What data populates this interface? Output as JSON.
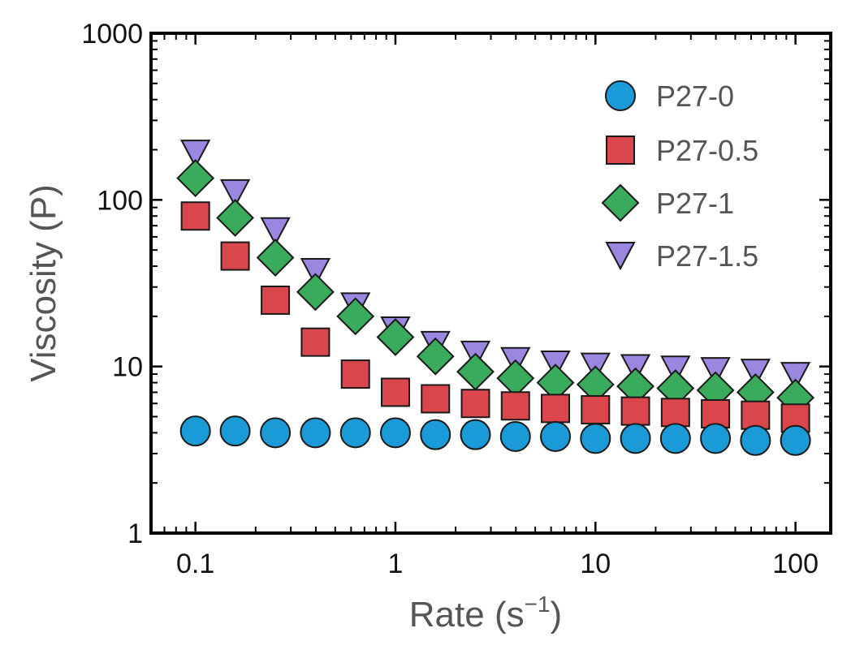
{
  "chart_data": {
    "type": "scatter",
    "xscale": "log",
    "yscale": "log",
    "xlim": [
      0.06,
      150
    ],
    "ylim": [
      1,
      1000
    ],
    "xticks": [
      0.1,
      1,
      10,
      100
    ],
    "xtick_labels": [
      "0.1",
      "1",
      "10",
      "100"
    ],
    "yticks": [
      1,
      10,
      100,
      1000
    ],
    "ytick_labels": [
      "1",
      "10",
      "100",
      "1000"
    ],
    "xlabel": "Rate (s",
    "xlabel_exponent": "−1",
    "xlabel_close": ")",
    "ylabel": "Viscosity (P)",
    "legend_position": "top-right",
    "x": [
      0.1,
      0.158,
      0.251,
      0.398,
      0.631,
      1,
      1.585,
      2.512,
      3.981,
      6.31,
      10,
      15.85,
      25.12,
      39.81,
      63.1,
      100
    ],
    "series": [
      {
        "name": "P27-0",
        "marker": "circle",
        "color": "#1a9ad6",
        "values": [
          4.1,
          4.1,
          4.0,
          4.0,
          4.0,
          4.0,
          3.9,
          3.9,
          3.8,
          3.8,
          3.7,
          3.7,
          3.7,
          3.7,
          3.6,
          3.6
        ]
      },
      {
        "name": "P27-0.5",
        "marker": "square",
        "color": "#d9474c",
        "values": [
          80,
          46,
          25,
          14,
          9,
          7,
          6.4,
          6.0,
          5.8,
          5.6,
          5.5,
          5.4,
          5.3,
          5.2,
          5.1,
          4.9
        ]
      },
      {
        "name": "P27-1",
        "marker": "diamond",
        "color": "#3aaa5c",
        "values": [
          135,
          78,
          45,
          28,
          20,
          15,
          11.5,
          9.3,
          8.5,
          8.0,
          7.8,
          7.6,
          7.4,
          7.2,
          7.0,
          6.5
        ]
      },
      {
        "name": "P27-1.5",
        "marker": "triangle-down",
        "color": "#9b86e0",
        "values": [
          190,
          110,
          65,
          37,
          23,
          16.5,
          13.5,
          11.8,
          10.8,
          10.3,
          10.0,
          9.8,
          9.6,
          9.4,
          9.2,
          8.8
        ]
      }
    ]
  }
}
